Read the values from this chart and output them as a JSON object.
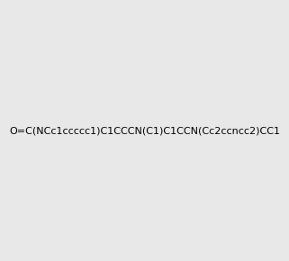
{
  "smiles": "O=C(NCc1ccccc1)C1CCCN(C1)C1CCN(Cc2ccncc2)CC1",
  "image_size": 300,
  "background_color": "#e8e8e8",
  "bond_color": "#000000",
  "atom_colors": {
    "N": "#0000ff",
    "O": "#ff0000",
    "C": "#000000",
    "H": "#000000"
  }
}
